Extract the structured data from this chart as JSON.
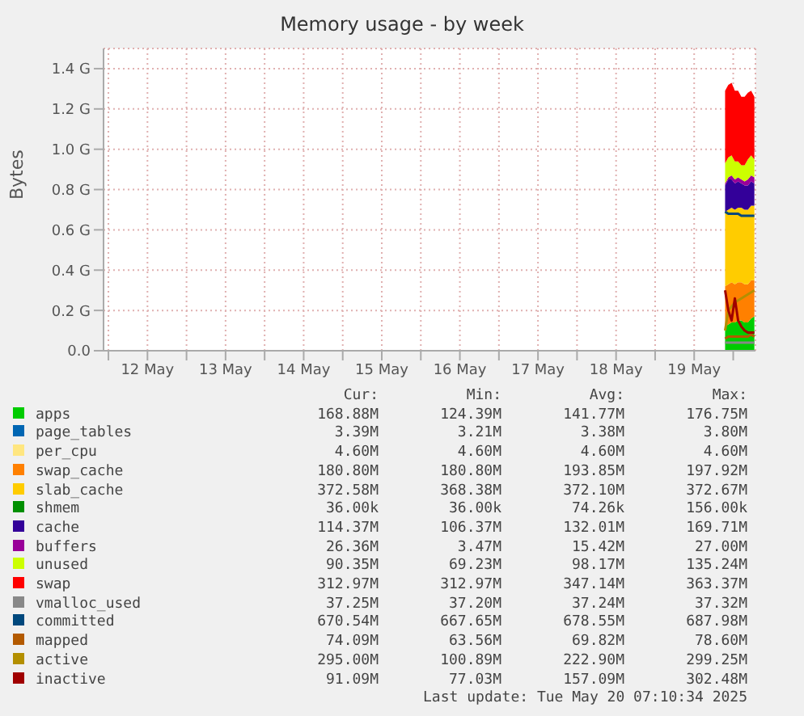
{
  "chart_data": {
    "type": "area",
    "title": "Memory usage - by week",
    "ylabel": "Bytes",
    "stacked": true,
    "x": [
      "2025-05-19T21:30",
      "2025-05-19T22:30",
      "2025-05-19T23:30",
      "2025-05-20T00:30",
      "2025-05-20T01:30",
      "2025-05-20T02:30",
      "2025-05-20T03:30",
      "2025-05-20T04:30",
      "2025-05-20T05:30",
      "2025-05-20T06:30"
    ],
    "xlim": [
      "2025-05-11T22:30",
      "2025-05-20T06:50"
    ],
    "xticks": [
      {
        "value": "2025-05-12T00:00",
        "label": null
      },
      {
        "value": "2025-05-12T12:00",
        "label": "12 May"
      },
      {
        "value": "2025-05-13T00:00",
        "label": null
      },
      {
        "value": "2025-05-13T12:00",
        "label": "13 May"
      },
      {
        "value": "2025-05-14T00:00",
        "label": null
      },
      {
        "value": "2025-05-14T12:00",
        "label": "14 May"
      },
      {
        "value": "2025-05-15T00:00",
        "label": null
      },
      {
        "value": "2025-05-15T12:00",
        "label": "15 May"
      },
      {
        "value": "2025-05-16T00:00",
        "label": null
      },
      {
        "value": "2025-05-16T12:00",
        "label": "16 May"
      },
      {
        "value": "2025-05-17T00:00",
        "label": null
      },
      {
        "value": "2025-05-17T12:00",
        "label": "17 May"
      },
      {
        "value": "2025-05-18T00:00",
        "label": null
      },
      {
        "value": "2025-05-18T12:00",
        "label": "18 May"
      },
      {
        "value": "2025-05-19T00:00",
        "label": null
      },
      {
        "value": "2025-05-19T12:00",
        "label": "19 May"
      },
      {
        "value": "2025-05-20T00:00",
        "label": null
      }
    ],
    "ylim": [
      0,
      1.5
    ],
    "yticks": [
      {
        "value": 0,
        "label": "0.0"
      },
      {
        "value": 0.2,
        "label": "0.2 G"
      },
      {
        "value": 0.4,
        "label": "0.4 G"
      },
      {
        "value": 0.6,
        "label": "0.6 G"
      },
      {
        "value": 0.8,
        "label": "0.8 G"
      },
      {
        "value": 1.0,
        "label": "1.0 G"
      },
      {
        "value": 1.2,
        "label": "1.2 G"
      },
      {
        "value": 1.4,
        "label": "1.4 G"
      }
    ],
    "grid": true,
    "legend": "bottom",
    "series": [
      {
        "name": "apps",
        "color": "#00cc00",
        "values": [
          0.12,
          0.13,
          0.14,
          0.14,
          0.15,
          0.15,
          0.14,
          0.14,
          0.16,
          0.17
        ]
      },
      {
        "name": "page_tables",
        "color": "#0066b3",
        "values": [
          null,
          null,
          null,
          null,
          null,
          null,
          null,
          null,
          null,
          null
        ]
      },
      {
        "name": "per_cpu",
        "color": "#ffe680",
        "values": [
          null,
          null,
          null,
          null,
          null,
          null,
          null,
          null,
          null,
          null
        ]
      },
      {
        "name": "swap_cache",
        "color": "#ff8000",
        "values": [
          0.2,
          0.2,
          0.2,
          0.19,
          0.19,
          0.19,
          0.19,
          0.19,
          0.19,
          0.18
        ]
      },
      {
        "name": "slab_cache",
        "color": "#ffcc00",
        "values": [
          0.37,
          0.37,
          0.37,
          0.37,
          0.37,
          0.37,
          0.37,
          0.37,
          0.37,
          0.37
        ]
      },
      {
        "name": "shmem",
        "color": "#008f00",
        "values": [
          null,
          null,
          null,
          null,
          null,
          null,
          null,
          null,
          null,
          null
        ]
      },
      {
        "name": "cache",
        "color": "#330099",
        "values": [
          0.13,
          0.15,
          0.14,
          0.13,
          0.13,
          0.12,
          0.12,
          0.12,
          0.12,
          0.11
        ]
      },
      {
        "name": "buffers",
        "color": "#990099",
        "values": [
          0.01,
          0.01,
          0.02,
          0.02,
          0.02,
          0.02,
          0.02,
          0.03,
          0.03,
          0.03
        ]
      },
      {
        "name": "unused",
        "color": "#ccff00",
        "values": [
          0.1,
          0.1,
          0.1,
          0.09,
          0.08,
          0.07,
          0.08,
          0.1,
          0.1,
          0.09
        ]
      },
      {
        "name": "swap",
        "color": "#ff0000",
        "values": [
          0.36,
          0.36,
          0.36,
          0.35,
          0.35,
          0.34,
          0.34,
          0.33,
          0.32,
          0.31
        ]
      },
      {
        "name": "vmalloc_used",
        "type": "line",
        "color": "#888888",
        "values": [
          0.04,
          0.04,
          0.04,
          0.04,
          0.04,
          0.04,
          0.04,
          0.04,
          0.04,
          0.04
        ]
      },
      {
        "name": "committed",
        "type": "line",
        "color": "#00487d",
        "values": [
          0.69,
          0.68,
          0.68,
          0.68,
          0.68,
          0.67,
          0.67,
          0.67,
          0.67,
          0.67
        ]
      },
      {
        "name": "mapped",
        "type": "line",
        "color": "#b35a00",
        "values": [
          0.06,
          0.07,
          0.07,
          0.07,
          0.07,
          0.07,
          0.07,
          0.07,
          0.08,
          0.07
        ]
      },
      {
        "name": "active",
        "type": "line",
        "color": "#b38f00",
        "values": [
          0.1,
          0.2,
          0.22,
          0.24,
          0.25,
          0.26,
          0.27,
          0.28,
          0.29,
          0.3
        ]
      },
      {
        "name": "inactive",
        "type": "line",
        "color": "#a00000",
        "values": [
          0.3,
          0.2,
          0.15,
          0.26,
          0.15,
          0.12,
          0.1,
          0.09,
          0.09,
          0.09
        ]
      }
    ],
    "annotations": [
      "Cur:",
      "Min:",
      "Avg:",
      "Max:",
      "168.88M",
      "124.39M",
      "141.77M",
      "176.75M",
      "3.39M",
      "3.21M",
      "3.38M",
      "3.80M",
      "4.60M",
      "4.60M",
      "4.60M",
      "4.60M",
      "180.80M",
      "180.80M",
      "193.85M",
      "197.92M",
      "372.58M",
      "368.38M",
      "372.10M",
      "372.67M",
      "36.00k",
      "36.00k",
      "74.26k",
      "156.00k",
      "114.37M",
      "106.37M",
      "132.01M",
      "169.71M",
      "26.36M",
      "3.47M",
      "15.42M",
      "27.00M",
      "90.35M",
      "69.23M",
      "98.17M",
      "135.24M",
      "312.97M",
      "312.97M",
      "347.14M",
      "363.37M",
      "37.25M",
      "37.20M",
      "37.24M",
      "37.32M",
      "670.54M",
      "667.65M",
      "678.55M",
      "687.98M",
      "74.09M",
      "63.56M",
      "69.82M",
      "78.60M",
      "295.00M",
      "100.89M",
      "222.90M",
      "299.25M",
      "91.09M",
      "77.03M",
      "157.09M",
      "302.48M",
      "Last update: Tue May 20 07:10:34 2025"
    ]
  }
}
